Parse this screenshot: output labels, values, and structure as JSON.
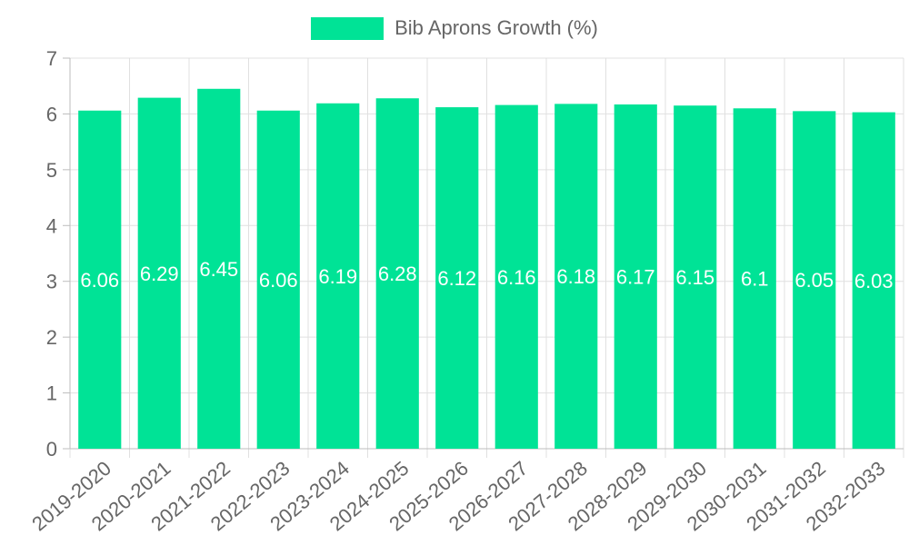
{
  "chart_data": {
    "type": "bar",
    "title": "",
    "xlabel": "",
    "ylabel": "",
    "categories": [
      "2019-2020",
      "2020-2021",
      "2021-2022",
      "2022-2023",
      "2023-2024",
      "2024-2025",
      "2025-2026",
      "2026-2027",
      "2027-2028",
      "2028-2029",
      "2029-2030",
      "2030-2031",
      "2031-2032",
      "2032-2033"
    ],
    "series": [
      {
        "name": "Bib Aprons Growth (%)",
        "values": [
          6.06,
          6.29,
          6.45,
          6.06,
          6.19,
          6.28,
          6.12,
          6.16,
          6.18,
          6.17,
          6.15,
          6.1,
          6.05,
          6.03
        ],
        "color": "#00e396"
      }
    ],
    "ylim": [
      0,
      7
    ],
    "yticks": [
      "0",
      "1",
      "2",
      "3",
      "4",
      "5",
      "6",
      "7"
    ],
    "data_labels": [
      "6.06",
      "6.29",
      "6.45",
      "6.06",
      "6.19",
      "6.28",
      "6.12",
      "6.16",
      "6.18",
      "6.17",
      "6.15",
      "6.1",
      "6.05",
      "6.03"
    ],
    "grid": true,
    "legend_position": "top-center"
  }
}
